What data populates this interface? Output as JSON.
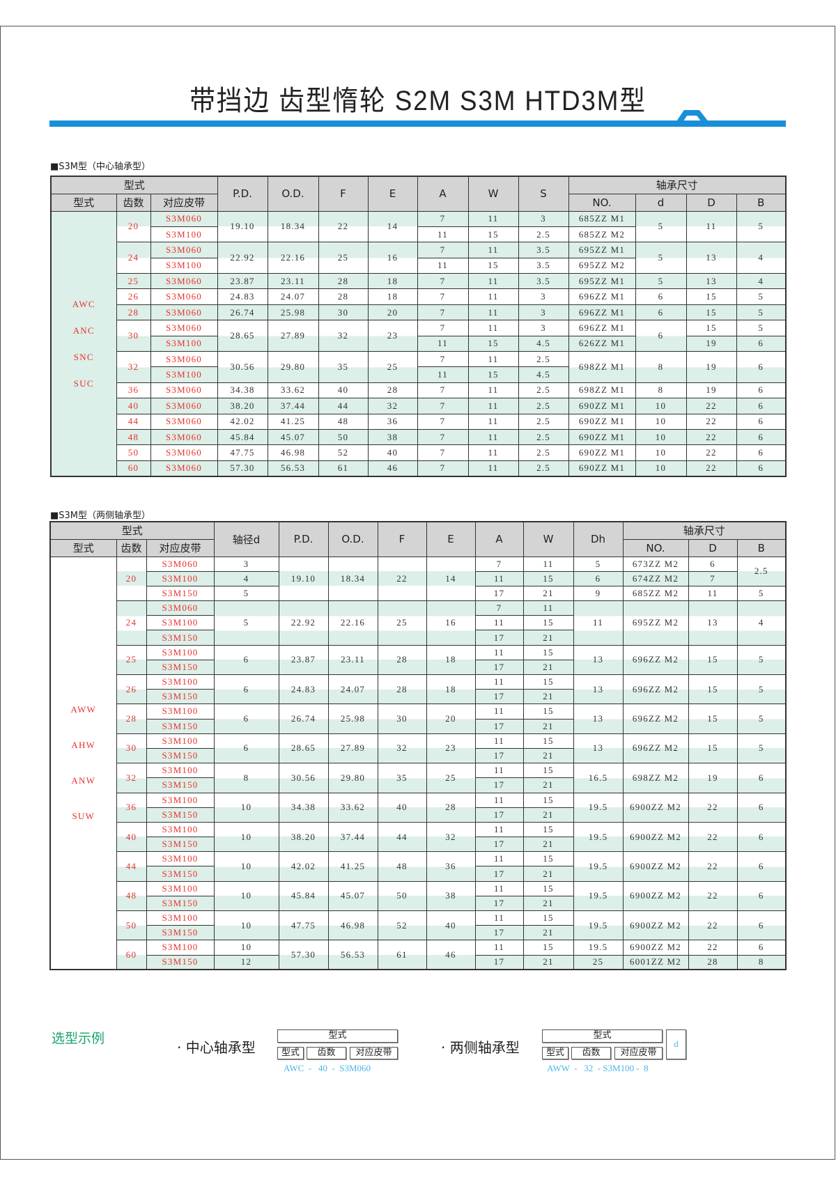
{
  "title": "带挡边 齿型惰轮 S2M S3M HTD3M型",
  "colors": {
    "accent_blue": "#1a8fd8",
    "row_green": "#dcefe8",
    "header_gray": "#d4d4d4",
    "red_text": "#e8322e",
    "example_blue": "#4ab4e6",
    "example_title_green": "#1aa36a"
  },
  "table1": {
    "label": "■S3M型（中心轴承型）",
    "headers": {
      "group": "型式",
      "type": "型式",
      "teeth": "齿数",
      "belt": "对应皮带",
      "pd": "P.D.",
      "od": "O.D.",
      "f": "F",
      "e": "E",
      "a": "A",
      "w": "W",
      "s": "S",
      "bearing": "轴承尺寸",
      "no": "NO.",
      "d": "d",
      "D": "D",
      "B": "B"
    },
    "types": [
      "AWC",
      "ANC",
      "SNC",
      "SUC"
    ],
    "rows": [
      [
        "20",
        "S3M060",
        "19.10",
        "18.34",
        "22",
        "14",
        "7",
        "11",
        "3",
        "685ZZ M1",
        "5",
        "11",
        "5"
      ],
      [
        null,
        "S3M100",
        null,
        null,
        null,
        null,
        "11",
        "15",
        "2.5",
        "685ZZ M2",
        null,
        null,
        null
      ],
      [
        "24",
        "S3M060",
        "22.92",
        "22.16",
        "25",
        "16",
        "7",
        "11",
        "3.5",
        "695ZZ M1",
        "5",
        "13",
        "4"
      ],
      [
        null,
        "S3M100",
        null,
        null,
        null,
        null,
        "11",
        "15",
        "3.5",
        "695ZZ M2",
        null,
        null,
        null
      ],
      [
        "25",
        "S3M060",
        "23.87",
        "23.11",
        "28",
        "18",
        "7",
        "11",
        "3.5",
        "695ZZ M1",
        "5",
        "13",
        "4"
      ],
      [
        "26",
        "S3M060",
        "24.83",
        "24.07",
        "28",
        "18",
        "7",
        "11",
        "3",
        "696ZZ M1",
        "6",
        "15",
        "5"
      ],
      [
        "28",
        "S3M060",
        "26.74",
        "25.98",
        "30",
        "20",
        "7",
        "11",
        "3",
        "696ZZ M1",
        "6",
        "15",
        "5"
      ],
      [
        "30",
        "S3M060",
        "28.65",
        "27.89",
        "32",
        "23",
        "7",
        "11",
        "3",
        "696ZZ M1",
        "6",
        "15",
        "5"
      ],
      [
        null,
        "S3M100",
        null,
        null,
        null,
        null,
        "11",
        "15",
        "4.5",
        "626ZZ M1",
        null,
        "19",
        "6"
      ],
      [
        "32",
        "S3M060",
        "30.56",
        "29.80",
        "35",
        "25",
        "7",
        "11",
        "2.5",
        "698ZZ M1",
        "8",
        "19",
        "6"
      ],
      [
        null,
        "S3M100",
        null,
        null,
        null,
        null,
        "11",
        "15",
        "4.5",
        null,
        null,
        null,
        null
      ],
      [
        "36",
        "S3M060",
        "34.38",
        "33.62",
        "40",
        "28",
        "7",
        "11",
        "2.5",
        "698ZZ M1",
        "8",
        "19",
        "6"
      ],
      [
        "40",
        "S3M060",
        "38.20",
        "37.44",
        "44",
        "32",
        "7",
        "11",
        "2.5",
        "690ZZ M1",
        "10",
        "22",
        "6"
      ],
      [
        "44",
        "S3M060",
        "42.02",
        "41.25",
        "48",
        "36",
        "7",
        "11",
        "2.5",
        "690ZZ M1",
        "10",
        "22",
        "6"
      ],
      [
        "48",
        "S3M060",
        "45.84",
        "45.07",
        "50",
        "38",
        "7",
        "11",
        "2.5",
        "690ZZ M1",
        "10",
        "22",
        "6"
      ],
      [
        "50",
        "S3M060",
        "47.75",
        "46.98",
        "52",
        "40",
        "7",
        "11",
        "2.5",
        "690ZZ M1",
        "10",
        "22",
        "6"
      ],
      [
        "60",
        "S3M060",
        "57.30",
        "56.53",
        "61",
        "46",
        "7",
        "11",
        "2.5",
        "690ZZ M1",
        "10",
        "22",
        "6"
      ]
    ]
  },
  "table2": {
    "label": "■S3M型（两侧轴承型）",
    "headers": {
      "group": "型式",
      "type": "型式",
      "teeth": "齿数",
      "belt": "对应皮带",
      "shaft": "轴径d",
      "pd": "P.D.",
      "od": "O.D.",
      "f": "F",
      "e": "E",
      "a": "A",
      "w": "W",
      "dh": "Dh",
      "bearing": "轴承尺寸",
      "no": "NO.",
      "D": "D",
      "B": "B"
    },
    "types": [
      "AWW",
      "AHW",
      "ANW",
      "SUW"
    ],
    "rows": [
      [
        "20",
        "S3M060",
        "3",
        "19.10",
        "18.34",
        "22",
        "14",
        "7",
        "11",
        "5",
        "673ZZ M2",
        "6",
        "2.5"
      ],
      [
        null,
        "S3M100",
        "4",
        null,
        null,
        null,
        null,
        "11",
        "15",
        "6",
        "674ZZ M2",
        "7",
        null
      ],
      [
        null,
        "S3M150",
        "5",
        null,
        null,
        null,
        null,
        "17",
        "21",
        "9",
        "685ZZ M2",
        "11",
        "5"
      ],
      [
        "24",
        "S3M060",
        "5",
        "22.92",
        "22.16",
        "25",
        "16",
        "7",
        "11",
        "11",
        "695ZZ M2",
        "13",
        "4"
      ],
      [
        null,
        "S3M100",
        null,
        null,
        null,
        null,
        null,
        "11",
        "15",
        null,
        null,
        null,
        null
      ],
      [
        null,
        "S3M150",
        null,
        null,
        null,
        null,
        null,
        "17",
        "21",
        null,
        null,
        null,
        null
      ],
      [
        "25",
        "S3M100",
        "6",
        "23.87",
        "23.11",
        "28",
        "18",
        "11",
        "15",
        "13",
        "696ZZ M2",
        "15",
        "5"
      ],
      [
        null,
        "S3M150",
        null,
        null,
        null,
        null,
        null,
        "17",
        "21",
        null,
        null,
        null,
        null
      ],
      [
        "26",
        "S3M100",
        "6",
        "24.83",
        "24.07",
        "28",
        "18",
        "11",
        "15",
        "13",
        "696ZZ M2",
        "15",
        "5"
      ],
      [
        null,
        "S3M150",
        null,
        null,
        null,
        null,
        null,
        "17",
        "21",
        null,
        null,
        null,
        null
      ],
      [
        "28",
        "S3M100",
        "6",
        "26.74",
        "25.98",
        "30",
        "20",
        "11",
        "15",
        "13",
        "696ZZ M2",
        "15",
        "5"
      ],
      [
        null,
        "S3M150",
        null,
        null,
        null,
        null,
        null,
        "17",
        "21",
        null,
        null,
        null,
        null
      ],
      [
        "30",
        "S3M100",
        "6",
        "28.65",
        "27.89",
        "32",
        "23",
        "11",
        "15",
        "13",
        "696ZZ M2",
        "15",
        "5"
      ],
      [
        null,
        "S3M150",
        null,
        null,
        null,
        null,
        null,
        "17",
        "21",
        null,
        null,
        null,
        null
      ],
      [
        "32",
        "S3M100",
        "8",
        "30.56",
        "29.80",
        "35",
        "25",
        "11",
        "15",
        "16.5",
        "698ZZ M2",
        "19",
        "6"
      ],
      [
        null,
        "S3M150",
        null,
        null,
        null,
        null,
        null,
        "17",
        "21",
        null,
        null,
        null,
        null
      ],
      [
        "36",
        "S3M100",
        "10",
        "34.38",
        "33.62",
        "40",
        "28",
        "11",
        "15",
        "19.5",
        "6900ZZ M2",
        "22",
        "6"
      ],
      [
        null,
        "S3M150",
        null,
        null,
        null,
        null,
        null,
        "17",
        "21",
        null,
        null,
        null,
        null
      ],
      [
        "40",
        "S3M100",
        "10",
        "38.20",
        "37.44",
        "44",
        "32",
        "11",
        "15",
        "19.5",
        "6900ZZ M2",
        "22",
        "6"
      ],
      [
        null,
        "S3M150",
        null,
        null,
        null,
        null,
        null,
        "17",
        "21",
        null,
        null,
        null,
        null
      ],
      [
        "44",
        "S3M100",
        "10",
        "42.02",
        "41.25",
        "48",
        "36",
        "11",
        "15",
        "19.5",
        "6900ZZ M2",
        "22",
        "6"
      ],
      [
        null,
        "S3M150",
        null,
        null,
        null,
        null,
        null,
        "17",
        "21",
        null,
        null,
        null,
        null
      ],
      [
        "48",
        "S3M100",
        "10",
        "45.84",
        "45.07",
        "50",
        "38",
        "11",
        "15",
        "19.5",
        "6900ZZ M2",
        "22",
        "6"
      ],
      [
        null,
        "S3M150",
        null,
        null,
        null,
        null,
        null,
        "17",
        "21",
        null,
        null,
        null,
        null
      ],
      [
        "50",
        "S3M100",
        "10",
        "47.75",
        "46.98",
        "52",
        "40",
        "11",
        "15",
        "19.5",
        "6900ZZ M2",
        "22",
        "6"
      ],
      [
        null,
        "S3M150",
        null,
        null,
        null,
        null,
        null,
        "17",
        "21",
        null,
        null,
        null,
        null
      ],
      [
        "60",
        "S3M100",
        "10",
        "57.30",
        "56.53",
        "61",
        "46",
        "11",
        "15",
        "19.5",
        "6900ZZ M2",
        "22",
        "6"
      ],
      [
        null,
        "S3M150",
        "12",
        null,
        null,
        null,
        null,
        "17",
        "21",
        "25",
        "6001ZZ M2",
        "28",
        "8"
      ]
    ]
  },
  "example": {
    "title": "选型示例",
    "center": {
      "label": "· 中心轴承型",
      "group": "型式",
      "type": "型式",
      "teeth": "齿数",
      "belt": "对应皮带",
      "value": "AWC  -   40  -  S3M060"
    },
    "side": {
      "label": "· 两侧轴承型",
      "group": "型式",
      "type": "型式",
      "teeth": "齿数",
      "belt": "对应皮带",
      "d": "d",
      "value": "AWW  -   32  - S3M100 -  8"
    }
  }
}
